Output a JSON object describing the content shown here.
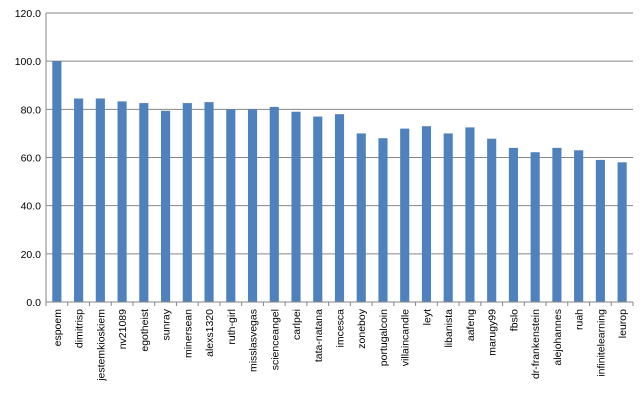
{
  "chart_data": {
    "type": "bar",
    "title": "",
    "xlabel": "",
    "ylabel": "",
    "ylim": [
      0,
      120
    ],
    "yticks": [
      "0.0",
      "20.0",
      "40.0",
      "60.0",
      "80.0",
      "100.0",
      "120.0"
    ],
    "grid": true,
    "legend": "none",
    "bar_color": "#4F81BD",
    "categories": [
      "espoem",
      "dimitrisp",
      "jestemkioskiem",
      "nv21089",
      "egotheist",
      "sunray",
      "minersean",
      "alexs1320",
      "ruth-girl",
      "misslasvegas",
      "scienceangel",
      "carlpei",
      "tata-natana",
      "imcesca",
      "zoneboy",
      "portugalcoin",
      "villaincandle",
      "leyt",
      "libanista",
      "aafeng",
      "marugy99",
      "fbslo",
      "dr-frankenstein",
      "alejohannes",
      "ruah",
      "infinitelearning",
      "leurop"
    ],
    "values": [
      100.0,
      84.5,
      84.5,
      83.3,
      82.6,
      79.4,
      82.6,
      83.0,
      80.0,
      80.0,
      81.0,
      79.0,
      77.0,
      78.0,
      70.0,
      68.0,
      72.0,
      73.0,
      70.0,
      72.5,
      67.8,
      64.0,
      62.2,
      64.0,
      63.0,
      59.0,
      58.0
    ]
  }
}
